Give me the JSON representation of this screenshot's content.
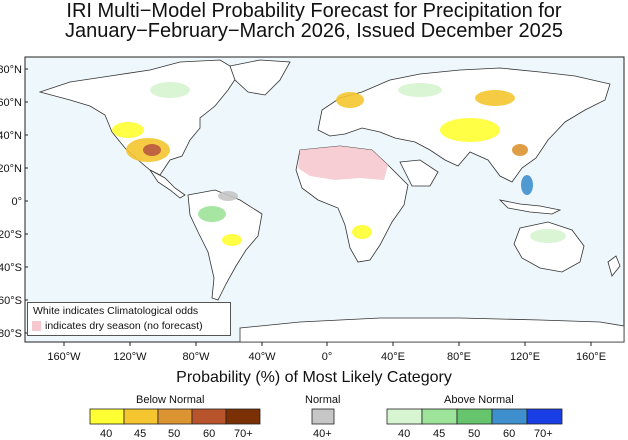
{
  "title": {
    "line1": "IRI Multi−Model Probability Forecast for Precipitation for",
    "line2": "January−February−March 2026, Issued December 2025"
  },
  "map": {
    "lat_labels": [
      "80°N",
      "60°N",
      "40°N",
      "20°N",
      "0°",
      "20°S",
      "40°S",
      "60°S",
      "80°S"
    ],
    "lon_labels": [
      "160°W",
      "120°W",
      "80°W",
      "40°W",
      "0°",
      "40°E",
      "80°E",
      "120°E",
      "160°E"
    ],
    "ocean_color": "#eef7fb",
    "land_color": "#ffffff",
    "dry_season_color": "#f6c9cf"
  },
  "note": {
    "line1": "White indicates Climatological odds",
    "line2": "indicates dry season (no forecast)"
  },
  "axis_title": "Probability (%) of Most Likely Category",
  "legend": {
    "below": {
      "title": "Below Normal",
      "labels": [
        "40",
        "45",
        "50",
        "60",
        "70+"
      ],
      "colors": [
        "#ffff33",
        "#f5c630",
        "#dc9433",
        "#b8542c",
        "#7a3004"
      ]
    },
    "normal": {
      "title": "Normal",
      "labels": [
        "40+"
      ],
      "colors": [
        "#c6c6c6"
      ]
    },
    "above": {
      "title": "Above Normal",
      "labels": [
        "40",
        "45",
        "50",
        "60",
        "70+"
      ],
      "colors": [
        "#d6f5d0",
        "#9ee39a",
        "#66c46d",
        "#3f8fce",
        "#1a3ee6"
      ]
    }
  }
}
